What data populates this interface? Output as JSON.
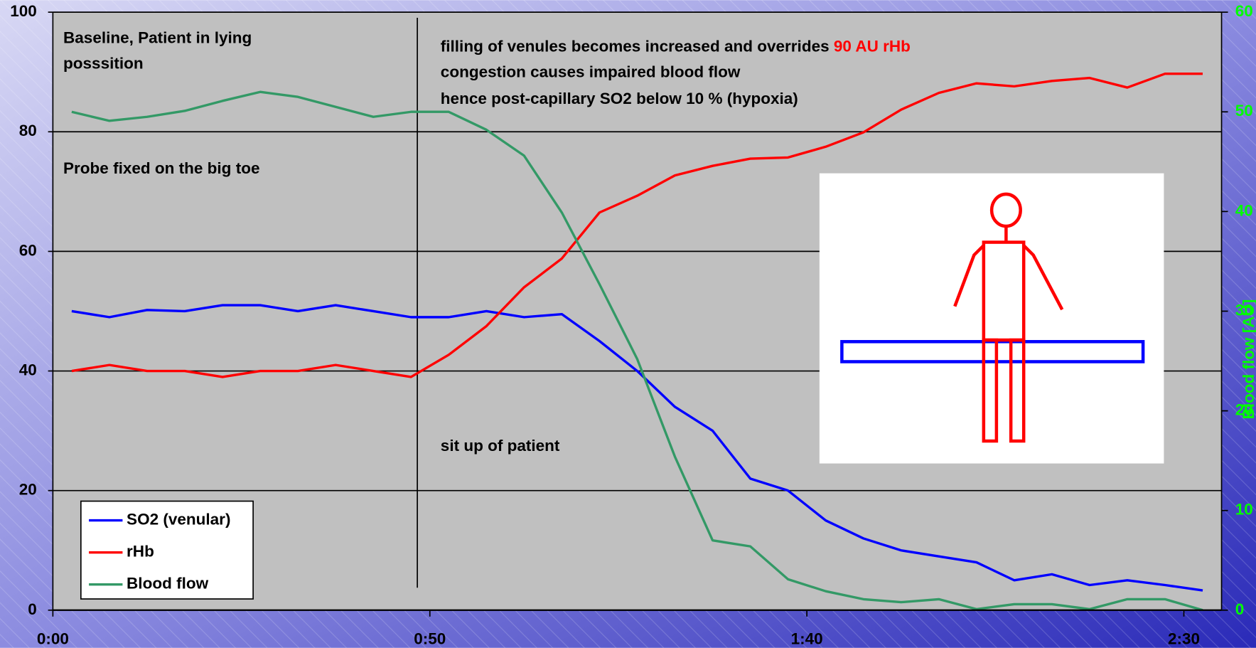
{
  "chart_data": {
    "type": "line",
    "x": [
      2.5,
      7.5,
      12.5,
      17.5,
      22.5,
      27.5,
      32.5,
      37.5,
      42.5,
      47.5,
      52.5,
      57.5,
      62.5,
      67.5,
      72.5,
      77.5,
      82.5,
      87.5,
      92.5,
      97.5,
      102.5,
      107.5,
      112.5,
      117.5,
      122.5,
      127.5,
      132.5,
      137.5,
      142.5,
      147.5,
      152.5
    ],
    "series": [
      {
        "name": "SO2 (venular)",
        "color": "#0000ff",
        "values": [
          50,
          49,
          50.2,
          50,
          51,
          51,
          50,
          51,
          50,
          49,
          49,
          50,
          49,
          49.5,
          45,
          40,
          34,
          30,
          22,
          20,
          15,
          12,
          10,
          9,
          8,
          5,
          6,
          4.2,
          5,
          4.2,
          3.3
        ]
      },
      {
        "name": "rHb",
        "color": "#ff0000",
        "values": [
          40,
          41,
          40,
          40,
          39,
          40,
          40,
          41,
          40,
          39,
          42.7,
          47.5,
          54,
          58.8,
          66.5,
          69.3,
          72.7,
          74.3,
          75.5,
          75.7,
          77.5,
          79.9,
          83.7,
          86.5,
          88.1,
          87.6,
          88.5,
          89,
          87.4,
          89.7,
          89.7
        ]
      },
      {
        "name": "Blood flow",
        "color": "#339966",
        "axis": "y2",
        "values": [
          50,
          49.1,
          49.5,
          50.1,
          51.1,
          52,
          51.5,
          50.5,
          49.5,
          50,
          50,
          48.2,
          45.6,
          39.9,
          32.7,
          25.2,
          15.4,
          7,
          6.4,
          3.1,
          1.9,
          1.1,
          0.8,
          1.1,
          0.1,
          0.6,
          0.6,
          0.1,
          1.1,
          1.1,
          0
        ]
      }
    ],
    "xlim": [
      0,
      155
    ],
    "xticks": [
      {
        "value": 0,
        "label": "0:00"
      },
      {
        "value": 50,
        "label": "0:50"
      },
      {
        "value": 100,
        "label": "1:40"
      },
      {
        "value": 150,
        "label": "2:30"
      }
    ],
    "ylim": [
      0,
      100
    ],
    "yticks": [
      0,
      20,
      40,
      60,
      80,
      100
    ],
    "y2lim": [
      0,
      60
    ],
    "y2ticks": [
      0,
      10,
      20,
      30,
      40,
      50,
      60
    ],
    "y2label": "Blood flow [AU]",
    "grid": true,
    "legend": "lower left",
    "annotations": {
      "baseline_1": "Baseline, Patient in lying",
      "baseline_2": "posssition",
      "probe": "Probe fixed on the big toe",
      "filling": "filling of venules becomes increased and overrides ",
      "filling_red": "90 AU rHb",
      "congestion": "congestion causes impaired blood flow",
      "hypoxia": "hence post-capillary SO2 below 10 % (hypoxia)",
      "situp": "sit up of patient"
    }
  }
}
